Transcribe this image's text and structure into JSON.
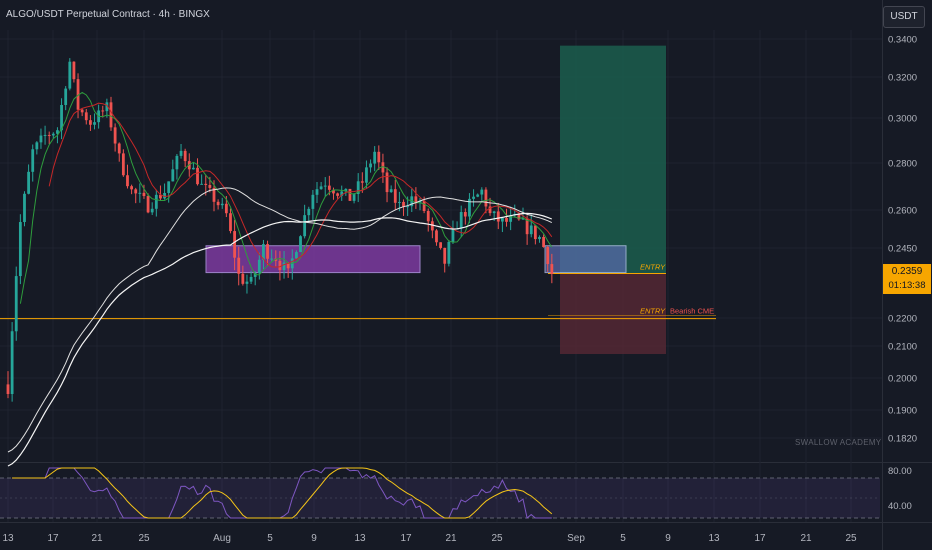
{
  "header": {
    "title": "ALGO/USDT Perpetual Contract · 4h · BINGX",
    "currency_button": "USDT"
  },
  "colors": {
    "background": "#161a25",
    "bull": "#26a69a",
    "bear": "#ef5350",
    "accent": "#f7a600",
    "profit_zone": "#1b5e4e",
    "loss_zone": "#5c2a35",
    "zone": "#8a3fb0",
    "rsi": "#7e57c2",
    "rsi_ma": "#f5c518"
  },
  "price_axis": {
    "ticks": [
      "0.3400",
      "0.3200",
      "0.3000",
      "0.2800",
      "0.2600",
      "0.2450",
      "0.2200",
      "0.2100",
      "0.2000",
      "0.1900",
      "0.1820"
    ]
  },
  "last_price": {
    "value": "0.2359",
    "countdown": "01:13:38"
  },
  "time_axis": {
    "labels": [
      "13",
      "17",
      "21",
      "25",
      "Aug",
      "5",
      "9",
      "13",
      "17",
      "21",
      "25",
      "Sep",
      "5",
      "9",
      "13",
      "17",
      "21",
      "25"
    ]
  },
  "annotations": {
    "entry_label": "ENTRY",
    "entry_label_2": "ENTRY",
    "bearish_label": "Bearish CME",
    "watermark": "SWALLOW ACADEMY"
  },
  "rsi_axis": {
    "ticks": [
      "80.00",
      "40.00"
    ]
  },
  "chart_data": {
    "type": "candlestick",
    "title": "ALGO/USDT Perpetual Contract · 4h · BINGX",
    "y_range": [
      0.178,
      0.345
    ],
    "x_start": "Jul 13",
    "candle_count": 133,
    "price_path": [
      [
        0,
        0.198
      ],
      [
        3,
        0.255
      ],
      [
        6,
        0.285
      ],
      [
        9,
        0.292
      ],
      [
        12,
        0.295
      ],
      [
        15,
        0.328
      ],
      [
        17,
        0.305
      ],
      [
        20,
        0.298
      ],
      [
        24,
        0.305
      ],
      [
        27,
        0.282
      ],
      [
        30,
        0.268
      ],
      [
        34,
        0.262
      ],
      [
        38,
        0.268
      ],
      [
        42,
        0.285
      ],
      [
        44,
        0.28
      ],
      [
        47,
        0.27
      ],
      [
        50,
        0.265
      ],
      [
        53,
        0.258
      ],
      [
        56,
        0.235
      ],
      [
        59,
        0.232
      ],
      [
        62,
        0.245
      ],
      [
        65,
        0.242
      ],
      [
        68,
        0.235
      ],
      [
        71,
        0.252
      ],
      [
        74,
        0.268
      ],
      [
        77,
        0.272
      ],
      [
        80,
        0.268
      ],
      [
        83,
        0.265
      ],
      [
        86,
        0.272
      ],
      [
        89,
        0.285
      ],
      [
        92,
        0.268
      ],
      [
        95,
        0.262
      ],
      [
        98,
        0.265
      ],
      [
        101,
        0.26
      ],
      [
        104,
        0.245
      ],
      [
        106,
        0.24
      ],
      [
        109,
        0.255
      ],
      [
        112,
        0.262
      ],
      [
        115,
        0.268
      ],
      [
        117,
        0.258
      ],
      [
        120,
        0.255
      ],
      [
        123,
        0.256
      ],
      [
        126,
        0.253
      ],
      [
        129,
        0.249
      ],
      [
        131,
        0.242
      ],
      [
        132,
        0.2359
      ]
    ],
    "support_zone": {
      "top": 0.2455,
      "bottom": 0.2405,
      "x_from": 50,
      "x_to": 152
    },
    "entry_price": 0.2359,
    "second_entry_price": 0.2205,
    "take_profit": 0.3365,
    "stop_loss": 0.2075,
    "rsi_levels": {
      "upper": 70,
      "lower": 30,
      "middle": 50
    },
    "rsi_axis_range": [
      28,
      82
    ]
  }
}
